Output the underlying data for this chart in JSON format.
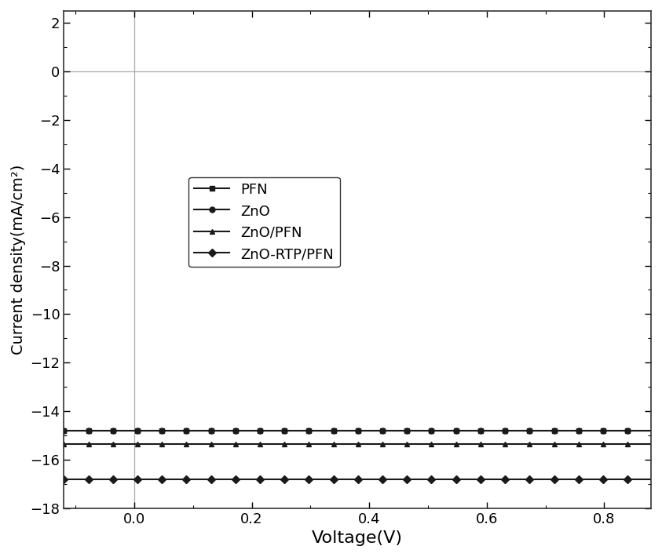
{
  "title": "",
  "xlabel": "Voltage(V)",
  "ylabel": "Current density(mA/cm²)",
  "xlim": [
    -0.12,
    0.88
  ],
  "ylim": [
    -18,
    2.5
  ],
  "xticks": [
    0.0,
    0.2,
    0.4,
    0.6,
    0.8
  ],
  "yticks": [
    -18,
    -16,
    -14,
    -12,
    -10,
    -8,
    -6,
    -4,
    -2,
    0,
    2
  ],
  "background": "#ffffff",
  "series": [
    {
      "label": "PFN",
      "marker": "s",
      "Jsc": -14.8,
      "Voc": 0.755,
      "n": 2.4,
      "Rs": 1.5
    },
    {
      "label": "ZnO",
      "marker": "o",
      "Jsc": -14.8,
      "Voc": 0.775,
      "n": 2.3,
      "Rs": 2.0
    },
    {
      "label": "ZnO/PFN",
      "marker": "^",
      "Jsc": -15.35,
      "Voc": 0.79,
      "n": 2.1,
      "Rs": 1.2
    },
    {
      "label": "ZnO-RTP/PFN",
      "marker": "D",
      "Jsc": -16.8,
      "Voc": 0.792,
      "n": 2.0,
      "Rs": 0.8
    }
  ],
  "figsize": [
    8.43,
    7.1
  ],
  "dpi": 100,
  "linewidth": 1.5,
  "markersize": 5,
  "marker_every": 25
}
